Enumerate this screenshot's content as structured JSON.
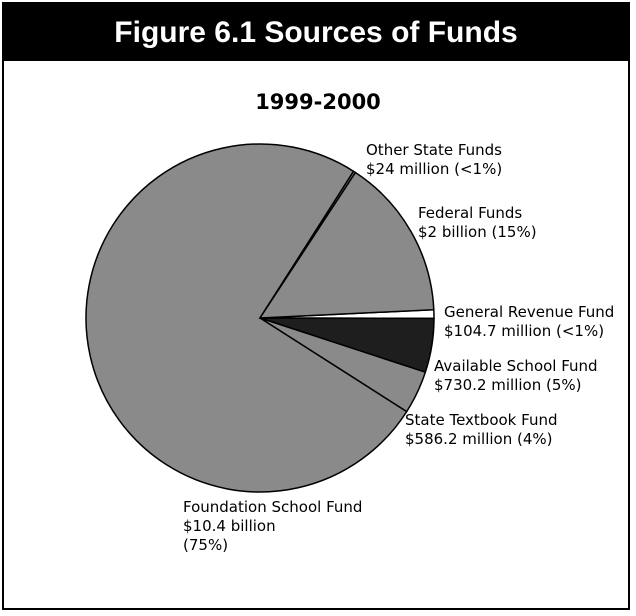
{
  "figure_title": "Figure 6.1   Sources of Funds",
  "colors": {
    "slice_gray": "#8a8a8a",
    "slice_black": "#1e1e1e",
    "slice_white": "#ffffff",
    "stroke": "#000000"
  },
  "chart_data": {
    "type": "pie",
    "title": "1999-2000",
    "slices": [
      {
        "name": "Foundation School Fund",
        "amount": "$10.4 billion",
        "percent_label": "(75%)",
        "value": 75.0,
        "color": "#8a8a8a"
      },
      {
        "name": "Other State Funds",
        "amount": "$24 million (<1%)",
        "value": 0.2,
        "color": "#8a8a8a"
      },
      {
        "name": "Federal Funds",
        "amount": "$2 billion (15%)",
        "value": 15.0,
        "color": "#8a8a8a"
      },
      {
        "name": "General Revenue Fund",
        "amount": "$104.7 million (<1%)",
        "value": 0.8,
        "color": "#ffffff"
      },
      {
        "name": "Available School Fund",
        "amount": "$730.2 million (5%)",
        "value": 5.0,
        "color": "#1e1e1e"
      },
      {
        "name": "State Textbook Fund",
        "amount": "$586.2 million (4%)",
        "value": 4.0,
        "color": "#8a8a8a"
      }
    ]
  }
}
